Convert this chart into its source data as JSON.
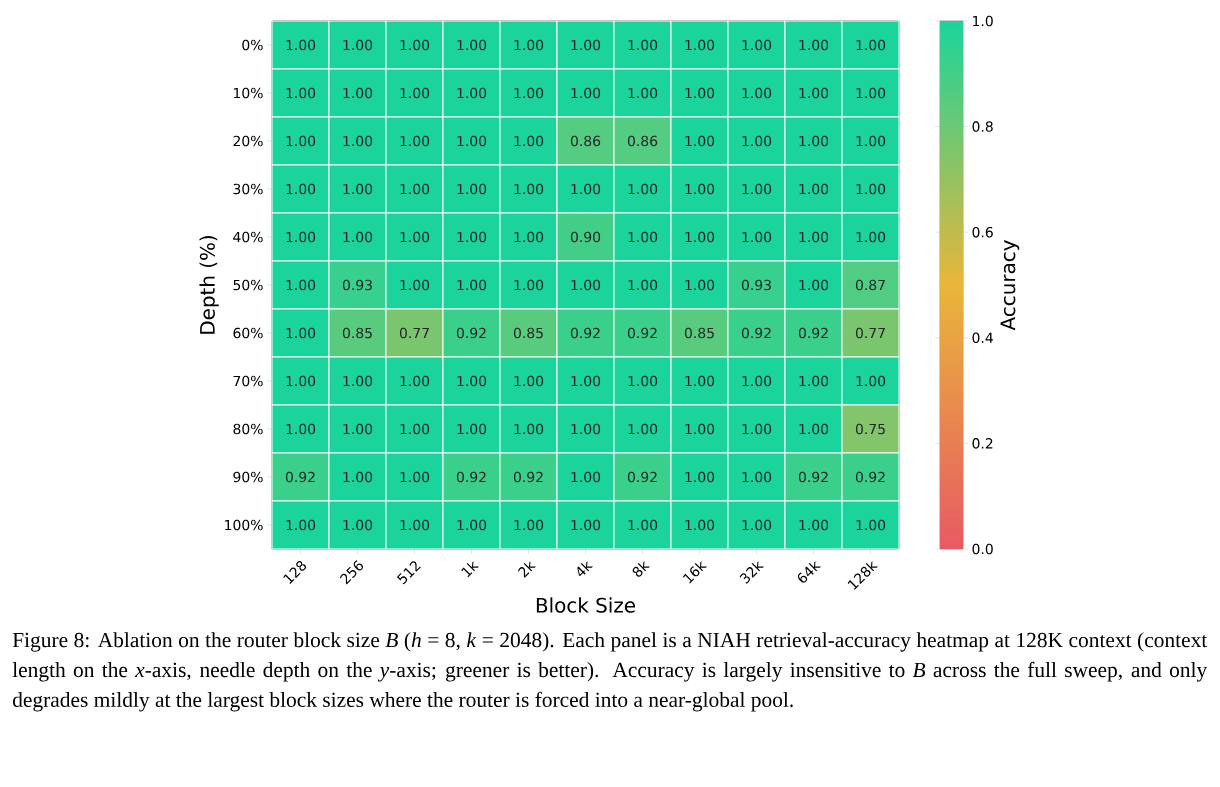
{
  "chart_data": {
    "type": "heatmap",
    "xlabel": "Block Size",
    "ylabel": "Depth (%)",
    "clabel": "Accuracy",
    "categories": [
      "128",
      "256",
      "512",
      "1k",
      "2k",
      "4k",
      "8k",
      "16k",
      "32k",
      "64k",
      "128k"
    ],
    "y_categories": [
      "0%",
      "10%",
      "20%",
      "30%",
      "40%",
      "50%",
      "60%",
      "70%",
      "80%",
      "90%",
      "100%"
    ],
    "cells": [
      [
        1.0,
        1.0,
        1.0,
        1.0,
        1.0,
        1.0,
        1.0,
        1.0,
        1.0,
        1.0,
        1.0
      ],
      [
        1.0,
        1.0,
        1.0,
        1.0,
        1.0,
        1.0,
        1.0,
        1.0,
        1.0,
        1.0,
        1.0
      ],
      [
        1.0,
        1.0,
        1.0,
        1.0,
        1.0,
        0.86,
        0.86,
        1.0,
        1.0,
        1.0,
        1.0
      ],
      [
        1.0,
        1.0,
        1.0,
        1.0,
        1.0,
        1.0,
        1.0,
        1.0,
        1.0,
        1.0,
        1.0
      ],
      [
        1.0,
        1.0,
        1.0,
        1.0,
        1.0,
        0.9,
        1.0,
        1.0,
        1.0,
        1.0,
        1.0
      ],
      [
        1.0,
        0.93,
        1.0,
        1.0,
        1.0,
        1.0,
        1.0,
        1.0,
        0.93,
        1.0,
        0.87
      ],
      [
        1.0,
        0.85,
        0.77,
        0.92,
        0.85,
        0.92,
        0.92,
        0.85,
        0.92,
        0.92,
        0.77
      ],
      [
        1.0,
        1.0,
        1.0,
        1.0,
        1.0,
        1.0,
        1.0,
        1.0,
        1.0,
        1.0,
        1.0
      ],
      [
        1.0,
        1.0,
        1.0,
        1.0,
        1.0,
        1.0,
        1.0,
        1.0,
        1.0,
        1.0,
        0.75
      ],
      [
        0.92,
        1.0,
        1.0,
        0.92,
        0.92,
        1.0,
        0.92,
        1.0,
        1.0,
        0.92,
        0.92
      ],
      [
        1.0,
        1.0,
        1.0,
        1.0,
        1.0,
        1.0,
        1.0,
        1.0,
        1.0,
        1.0,
        1.0
      ]
    ],
    "cell_labels": [
      [
        "1.00",
        "1.00",
        "1.00",
        "1.00",
        "1.00",
        "1.00",
        "1.00",
        "1.00",
        "1.00",
        "1.00",
        "1.00"
      ],
      [
        "1.00",
        "1.00",
        "1.00",
        "1.00",
        "1.00",
        "1.00",
        "1.00",
        "1.00",
        "1.00",
        "1.00",
        "1.00"
      ],
      [
        "1.00",
        "1.00",
        "1.00",
        "1.00",
        "1.00",
        "0.86",
        "0.86",
        "1.00",
        "1.00",
        "1.00",
        "1.00"
      ],
      [
        "1.00",
        "1.00",
        "1.00",
        "1.00",
        "1.00",
        "1.00",
        "1.00",
        "1.00",
        "1.00",
        "1.00",
        "1.00"
      ],
      [
        "1.00",
        "1.00",
        "1.00",
        "1.00",
        "1.00",
        "0.90",
        "1.00",
        "1.00",
        "1.00",
        "1.00",
        "1.00"
      ],
      [
        "1.00",
        "0.93",
        "1.00",
        "1.00",
        "1.00",
        "1.00",
        "1.00",
        "1.00",
        "0.93",
        "1.00",
        "0.87"
      ],
      [
        "1.00",
        "0.85",
        "0.77",
        "0.92",
        "0.85",
        "0.92",
        "0.92",
        "0.85",
        "0.92",
        "0.92",
        "0.77"
      ],
      [
        "1.00",
        "1.00",
        "1.00",
        "1.00",
        "1.00",
        "1.00",
        "1.00",
        "1.00",
        "1.00",
        "1.00",
        "1.00"
      ],
      [
        "1.00",
        "1.00",
        "1.00",
        "1.00",
        "1.00",
        "1.00",
        "1.00",
        "1.00",
        "1.00",
        "1.00",
        "0.75"
      ],
      [
        "0.92",
        "1.00",
        "1.00",
        "0.92",
        "0.92",
        "1.00",
        "0.92",
        "1.00",
        "1.00",
        "0.92",
        "0.92"
      ],
      [
        "1.00",
        "1.00",
        "1.00",
        "1.00",
        "1.00",
        "1.00",
        "1.00",
        "1.00",
        "1.00",
        "1.00",
        "1.00"
      ]
    ],
    "clim": [
      0.0,
      1.0
    ],
    "cticks": [
      {
        "value": 0.0,
        "label": "0.0"
      },
      {
        "value": 0.2,
        "label": "0.2"
      },
      {
        "value": 0.4,
        "label": "0.4"
      },
      {
        "value": 0.6,
        "label": "0.6"
      },
      {
        "value": 0.8,
        "label": "0.8"
      },
      {
        "value": 1.0,
        "label": "1.0"
      }
    ],
    "annotations": [
      "Figure 8: Ablation on the router block size *B* (*h* = 8, *k* = 2048). Each panel is a NIAH retrieval-accuracy heatmap at 128K context (context length on the *x*-axis, needle depth on the *y*-axis; greener is better). Accuracy is largely insensitive to *B* across the full sweep, and only degrades mildly at the largest block sizes where the router is forced into a near-global pool."
    ]
  }
}
